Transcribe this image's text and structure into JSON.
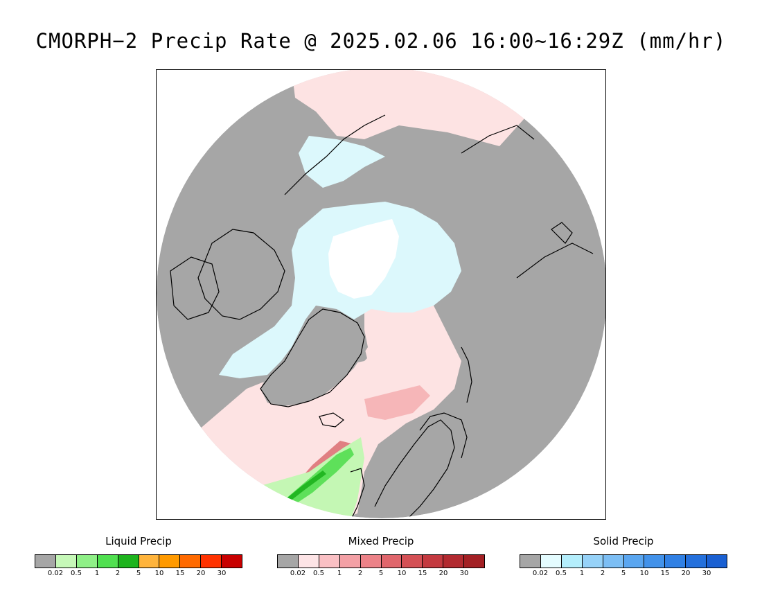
{
  "title": "CMORPH−2 Precip Rate @ 2025.02.06 16:00~16:29Z (mm/hr)",
  "map": {
    "projection": "north-polar-stereographic",
    "colors": {
      "background": "#ffffff",
      "no_precip": "#a6a6a6",
      "mixed_light": "#fde3e3",
      "mixed_moderate": "#f6b6b8",
      "mixed_heavy": "#e07f82",
      "solid_light": "#dcf8fc",
      "polar_hole": "#ffffff",
      "liquid_light": "#c4f7b4",
      "liquid_moderate": "#5ee05a",
      "liquid_heavy": "#22b722",
      "coastline": "#000000"
    }
  },
  "legends": [
    {
      "id": "liquid",
      "title": "Liquid Precip",
      "colors": [
        "#a6a6a6",
        "#c6f8b8",
        "#8ff087",
        "#50e050",
        "#1eb41e",
        "#ffb43c",
        "#ff9a00",
        "#ff6a00",
        "#ff3200",
        "#c80000"
      ],
      "ticks": [
        "0.02",
        "0.5",
        "1",
        "2",
        "5",
        "10",
        "15",
        "20",
        "30"
      ]
    },
    {
      "id": "mixed",
      "title": "Mixed Precip",
      "colors": [
        "#a6a6a6",
        "#fde4e6",
        "#fac0c4",
        "#f3a0a5",
        "#ec8288",
        "#e0666c",
        "#d45055",
        "#c43a40",
        "#b22a30",
        "#a32024"
      ],
      "ticks": [
        "0.02",
        "0.5",
        "1",
        "2",
        "5",
        "10",
        "15",
        "20",
        "30"
      ]
    },
    {
      "id": "solid",
      "title": "Solid Precip",
      "colors": [
        "#a6a6a6",
        "#e4fcff",
        "#b4eefc",
        "#96d2f8",
        "#7cbef4",
        "#5aa6f0",
        "#4292ea",
        "#3080e4",
        "#2470dc",
        "#1a60d2"
      ],
      "ticks": [
        "0.02",
        "0.5",
        "1",
        "2",
        "5",
        "10",
        "15",
        "20",
        "30"
      ]
    }
  ]
}
